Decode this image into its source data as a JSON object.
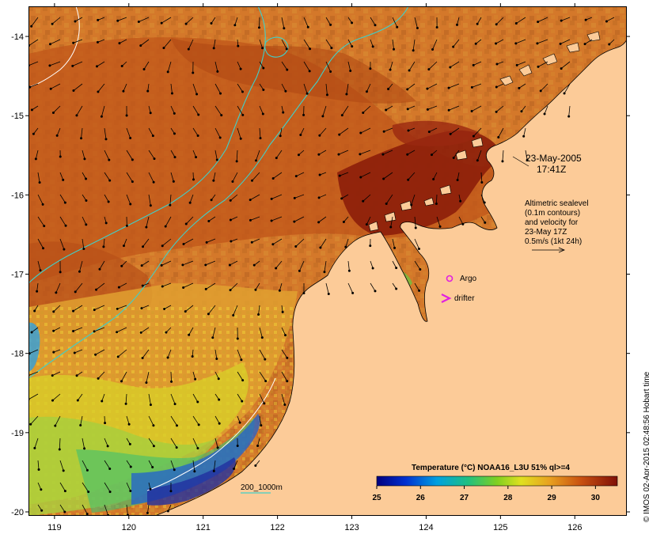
{
  "map": {
    "lon_ticks": [
      "119",
      "120",
      "121",
      "122",
      "123",
      "124",
      "125",
      "126"
    ],
    "lat_ticks": [
      "-14",
      "-15",
      "-16",
      "-17",
      "-18",
      "-19",
      "-20"
    ],
    "lon_range": [
      118.65,
      126.7
    ],
    "lat_range": [
      -13.62,
      -20.05
    ]
  },
  "annotations": {
    "date": "23-May-2005",
    "time": "17:41Z",
    "altimetry_lines": [
      "Altimetric sealevel",
      "(0.1m contours)",
      "and velocity for",
      "23-May 17Z",
      "0.5m/s (1kt 24h)"
    ],
    "argo_label": "Argo",
    "drifter_label": "drifter",
    "depth_legend": "200_1000m"
  },
  "colorbar": {
    "title": "Temperature (°C) NOAA16_L3U 51% ql>=4",
    "ticks": [
      "25",
      "26",
      "27",
      "28",
      "29",
      "30"
    ],
    "range": [
      25,
      30.5
    ]
  },
  "credit": "© IMOS 02-Apr-2015 02:48:56 Hobart time",
  "colors": {
    "land": "#fccb98",
    "warm": "#c85a14",
    "hot": "#8c1e0a",
    "contour": "#40d0c8",
    "argo": "#e020e0"
  }
}
